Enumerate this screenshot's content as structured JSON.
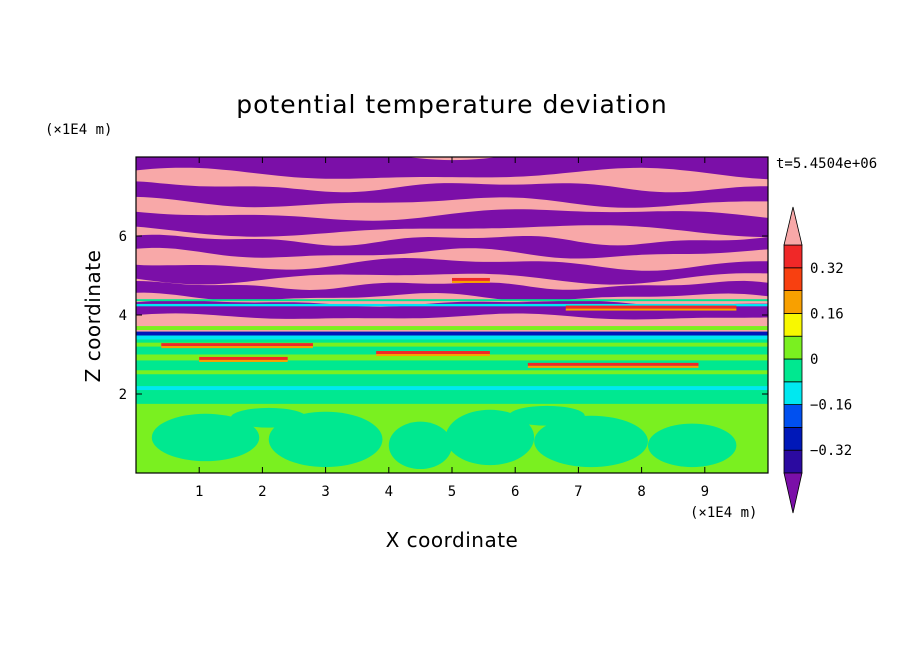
{
  "chart_data": {
    "type": "heatmap",
    "title": "potential temperature deviation",
    "xlabel": "X coordinate",
    "ylabel": "Z coordinate",
    "x_unit": "(×1E4 m)",
    "y_unit": "(×1E4 m)",
    "time_label": "t=5.4504e+06",
    "xlim": [
      0,
      10
    ],
    "ylim": [
      0,
      8
    ],
    "x_ticks": [
      1,
      2,
      3,
      4,
      5,
      6,
      7,
      8,
      9
    ],
    "y_ticks": [
      2,
      4,
      6
    ],
    "grid": false,
    "colorbar": {
      "placement": "right",
      "levels": [
        -0.4,
        -0.32,
        -0.24,
        -0.16,
        -0.08,
        0,
        0.08,
        0.16,
        0.24,
        0.32,
        0.4
      ],
      "colors": [
        "#7b0fa8",
        "#2b0aa0",
        "#0018b8",
        "#0050f0",
        "#00e8f0",
        "#00e890",
        "#7af020",
        "#f8f800",
        "#f8a000",
        "#f84010",
        "#f02828",
        "#f8a8a8"
      ],
      "tick_labels": [
        "0.32",
        "0.16",
        "0",
        "−0.16",
        "−0.32"
      ],
      "tick_values": [
        0.32,
        0.16,
        0,
        -0.16,
        -0.32
      ],
      "extend": "both"
    },
    "bands": [
      {
        "z_range": [
          0.0,
          1.9
        ],
        "description_color": "#7af020",
        "alt_color": "#00e890"
      },
      {
        "z_range": [
          1.9,
          3.4
        ],
        "description_color": "#00e890",
        "alt_color": "#7af020"
      },
      {
        "z_range": [
          3.4,
          4.0
        ],
        "description_color": "#f8a8a8",
        "alt_color": "#00e8f0"
      },
      {
        "z_range": [
          4.0,
          7.9
        ],
        "description_color": "#f8a8a8",
        "alt_color": "#7b0fa8"
      }
    ]
  }
}
